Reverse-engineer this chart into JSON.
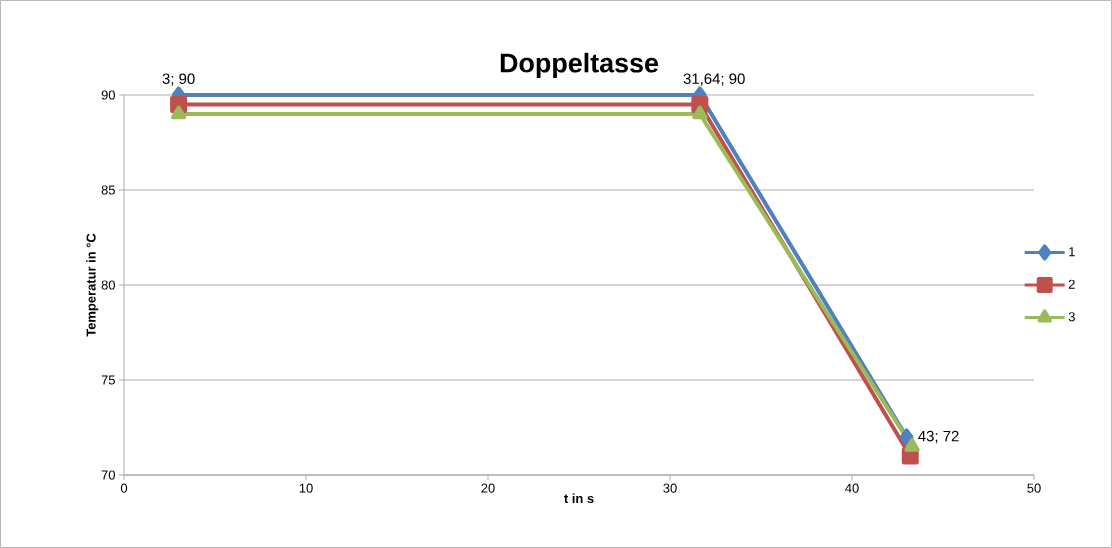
{
  "chart_data": {
    "type": "line",
    "title": "Doppeltasse",
    "xlabel": "t  in  s",
    "ylabel": "Temperatur in °C",
    "xlim": [
      0,
      50
    ],
    "xticks": [
      0,
      10,
      20,
      30,
      40,
      50
    ],
    "ylim": [
      70,
      90
    ],
    "yticks": [
      70,
      75,
      80,
      85,
      90
    ],
    "grid": "y",
    "legend": "right",
    "series": [
      {
        "name": "1",
        "color": "#4f81bd",
        "marker": "diamond",
        "x": [
          3,
          31.64,
          43
        ],
        "values": [
          90,
          90,
          72
        ]
      },
      {
        "name": "2",
        "color": "#c0504d",
        "marker": "square",
        "x": [
          3,
          31.64,
          43.2
        ],
        "values": [
          89.5,
          89.5,
          71
        ]
      },
      {
        "name": "3",
        "color": "#9bbb59",
        "marker": "triangle",
        "x": [
          3,
          31.64,
          43.3
        ],
        "values": [
          89,
          89,
          71.5
        ]
      }
    ],
    "annotations": [
      {
        "text": "3; 90",
        "x": 3,
        "y": 90
      },
      {
        "text": "31,64; 90",
        "x": 31.64,
        "y": 90
      },
      {
        "text": "43; 72",
        "x": 43,
        "y": 72
      }
    ]
  }
}
